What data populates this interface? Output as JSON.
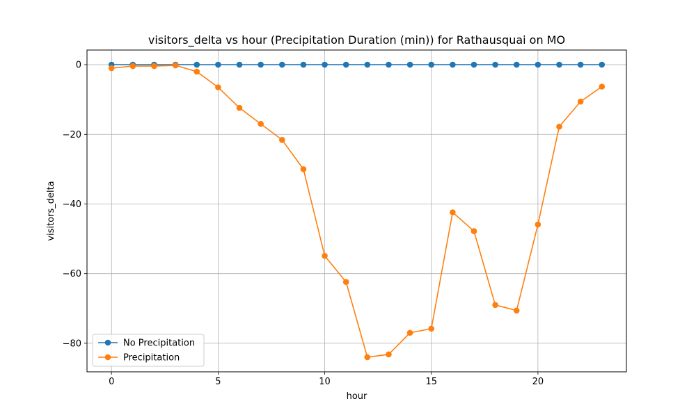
{
  "chart_data": {
    "type": "line",
    "title": "visitors_delta vs hour (Precipitation Duration (min)) for Rathausquai on MO",
    "xlabel": "hour",
    "ylabel": "visitors_delta",
    "xlim": [
      -1.15,
      24.15
    ],
    "ylim": [
      -88.2,
      4.2
    ],
    "xticks": [
      0,
      5,
      10,
      15,
      20
    ],
    "yticks": [
      0,
      -20,
      -40,
      -60,
      -80
    ],
    "grid": true,
    "legend_position": "lower-left",
    "x": [
      0,
      1,
      2,
      3,
      4,
      5,
      6,
      7,
      8,
      9,
      10,
      11,
      12,
      13,
      14,
      15,
      16,
      17,
      18,
      19,
      20,
      21,
      22,
      23
    ],
    "series": [
      {
        "name": "No Precipitation",
        "color": "#1f77b4",
        "values": [
          0,
          0,
          0,
          0,
          0,
          0,
          0,
          0,
          0,
          0,
          0,
          0,
          0,
          0,
          0,
          0,
          0,
          0,
          0,
          0,
          0,
          0,
          0,
          0
        ]
      },
      {
        "name": "Precipitation",
        "color": "#ff7f0e",
        "values": [
          -1.0,
          -0.4,
          -0.4,
          -0.2,
          -2.0,
          -6.5,
          -12.4,
          -17.0,
          -21.6,
          -30.0,
          -54.9,
          -62.4,
          -84.0,
          -83.2,
          -77.0,
          -75.8,
          -42.4,
          -47.8,
          -69.0,
          -70.6,
          -45.9,
          -17.8,
          -10.6,
          -6.3
        ]
      }
    ]
  }
}
